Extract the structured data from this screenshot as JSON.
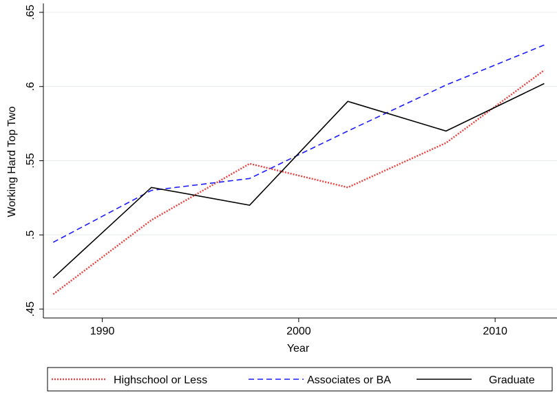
{
  "chart_data": {
    "type": "line",
    "x": [
      1987.5,
      1992.5,
      1997.5,
      2002.5,
      2007.5,
      2012.5
    ],
    "series": [
      {
        "name": "Highschool or Less",
        "color": "#e8423f",
        "dash": "2,2",
        "values": [
          0.46,
          0.51,
          0.548,
          0.532,
          0.562,
          0.611
        ]
      },
      {
        "name": "Associates or BA",
        "color": "#1a1aff",
        "dash": "8,5",
        "values": [
          0.495,
          0.53,
          0.538,
          0.57,
          0.601,
          0.628
        ]
      },
      {
        "name": "Graduate",
        "color": "#000000",
        "dash": "none",
        "values": [
          0.471,
          0.532,
          0.52,
          0.59,
          0.57,
          0.602
        ]
      }
    ],
    "xlabel": "Year",
    "ylabel": "Working Hard Top Two",
    "xlim": [
      1987.0,
      2013.15
    ],
    "ylim": [
      0.444,
      0.656
    ],
    "xticks": [
      1990,
      2000,
      2010
    ],
    "yticks": [
      {
        "value": 0.45,
        "label": ".45"
      },
      {
        "value": 0.5,
        "label": ".5"
      },
      {
        "value": 0.55,
        "label": ".55"
      },
      {
        "value": 0.6,
        "label": ".6"
      },
      {
        "value": 0.65,
        "label": ".65"
      }
    ],
    "grid": true,
    "legend": "bottom"
  }
}
